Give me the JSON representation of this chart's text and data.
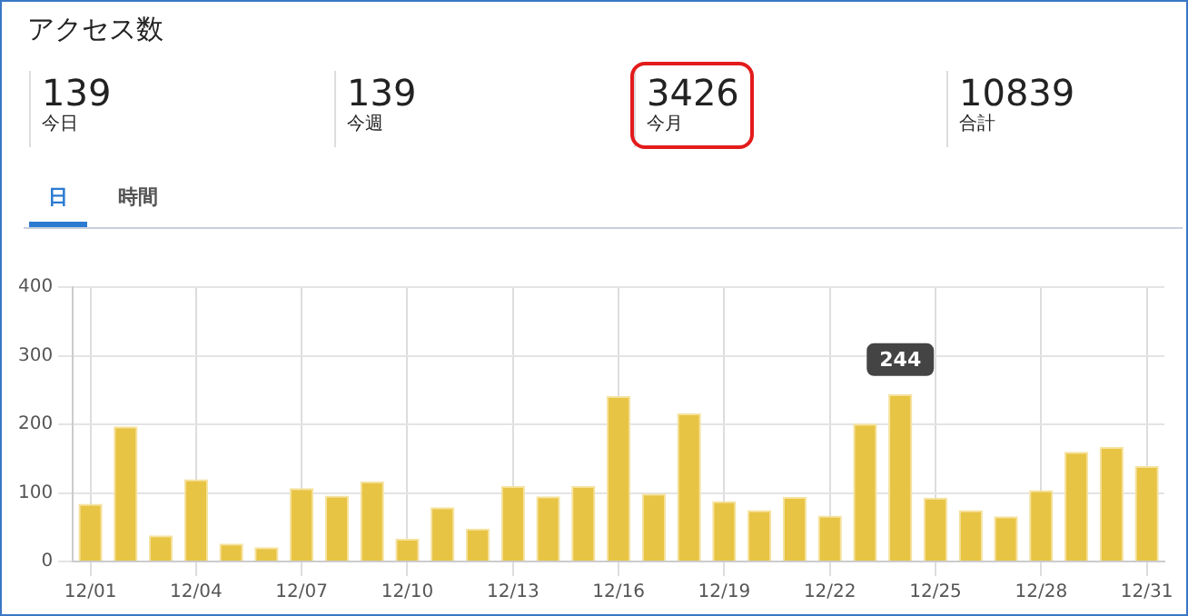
{
  "chart_data": [
    {
      "type": "other",
      "title": "アクセス数",
      "annotations": [
        "139",
        "今日",
        "139",
        "今週",
        "3426",
        "今月",
        "10839",
        "合計",
        "日",
        "時間"
      ]
    },
    {
      "type": "bar",
      "categories": [
        "12/01",
        null,
        null,
        "12/04",
        null,
        null,
        "12/07",
        null,
        null,
        "12/10",
        null,
        null,
        "12/13",
        null,
        null,
        "12/16",
        null,
        null,
        "12/19",
        null,
        null,
        "12/22",
        null,
        null,
        "12/25",
        null,
        null,
        "12/28",
        null,
        null,
        "12/31"
      ],
      "values": [
        84,
        197,
        38,
        120,
        26,
        21,
        107,
        96,
        117,
        33,
        79,
        48,
        110,
        95,
        110,
        241,
        99,
        216,
        88,
        75,
        94,
        67,
        201,
        244,
        93,
        75,
        66,
        104,
        160,
        167,
        139
      ],
      "color": "#e8c444",
      "ylim": [
        0,
        400
      ],
      "yticks": [
        0,
        100,
        200,
        300,
        400
      ],
      "grid": true,
      "legend": false,
      "annotations": [
        {
          "text": "244",
          "y": 244
        }
      ]
    }
  ]
}
